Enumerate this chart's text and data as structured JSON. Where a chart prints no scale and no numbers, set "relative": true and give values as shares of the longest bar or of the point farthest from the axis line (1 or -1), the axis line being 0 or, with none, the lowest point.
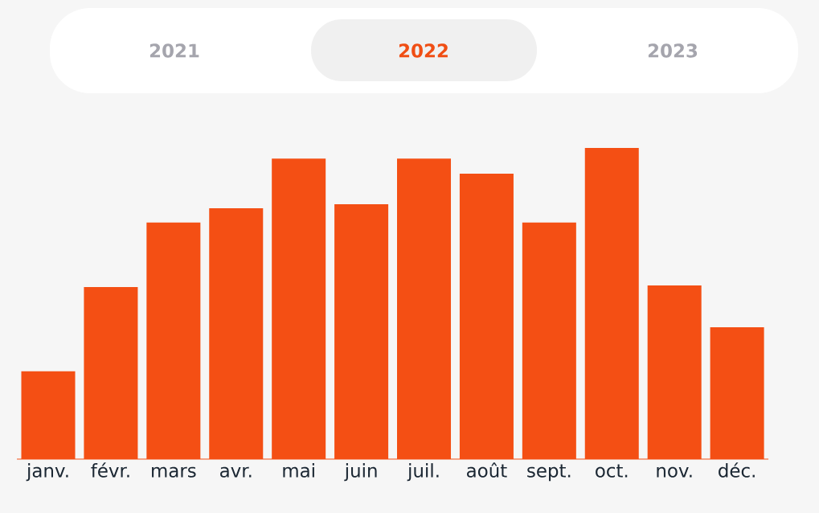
{
  "chart_data": {
    "type": "bar",
    "relative": true,
    "color": "#f44f14",
    "categories": [
      "janv.",
      "févr.",
      "mars",
      "avr.",
      "mai",
      "juin",
      "juil.",
      "août",
      "sept.",
      "oct.",
      "nov.",
      "déc."
    ],
    "values": [
      0.282,
      0.553,
      0.76,
      0.806,
      0.966,
      0.819,
      0.966,
      0.917,
      0.76,
      1,
      0.558,
      0.424
    ],
    "annotations": [
      "2021",
      "2022",
      "2023"
    ]
  }
}
